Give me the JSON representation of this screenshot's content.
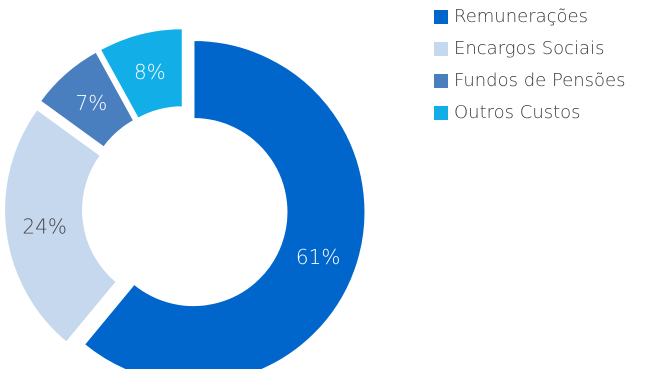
{
  "chart_data": {
    "type": "pie",
    "style": "donut",
    "title": "",
    "legend_position": "top-right",
    "categories": [
      "Remunerações",
      "Encargos Sociais",
      "Fundos de Pensões",
      "Outros Custos"
    ],
    "values": [
      61,
      24,
      7,
      8
    ],
    "value_labels": [
      "61%",
      "24%",
      "7%",
      "8%"
    ],
    "colors": [
      "#0066cc",
      "#c5d8ee",
      "#4a7fbf",
      "#12aee8"
    ],
    "label_colors": [
      "#ffffff",
      "#444444",
      "#ffffff",
      "#ffffff"
    ],
    "exploded": [
      true,
      true,
      true,
      true
    ]
  }
}
